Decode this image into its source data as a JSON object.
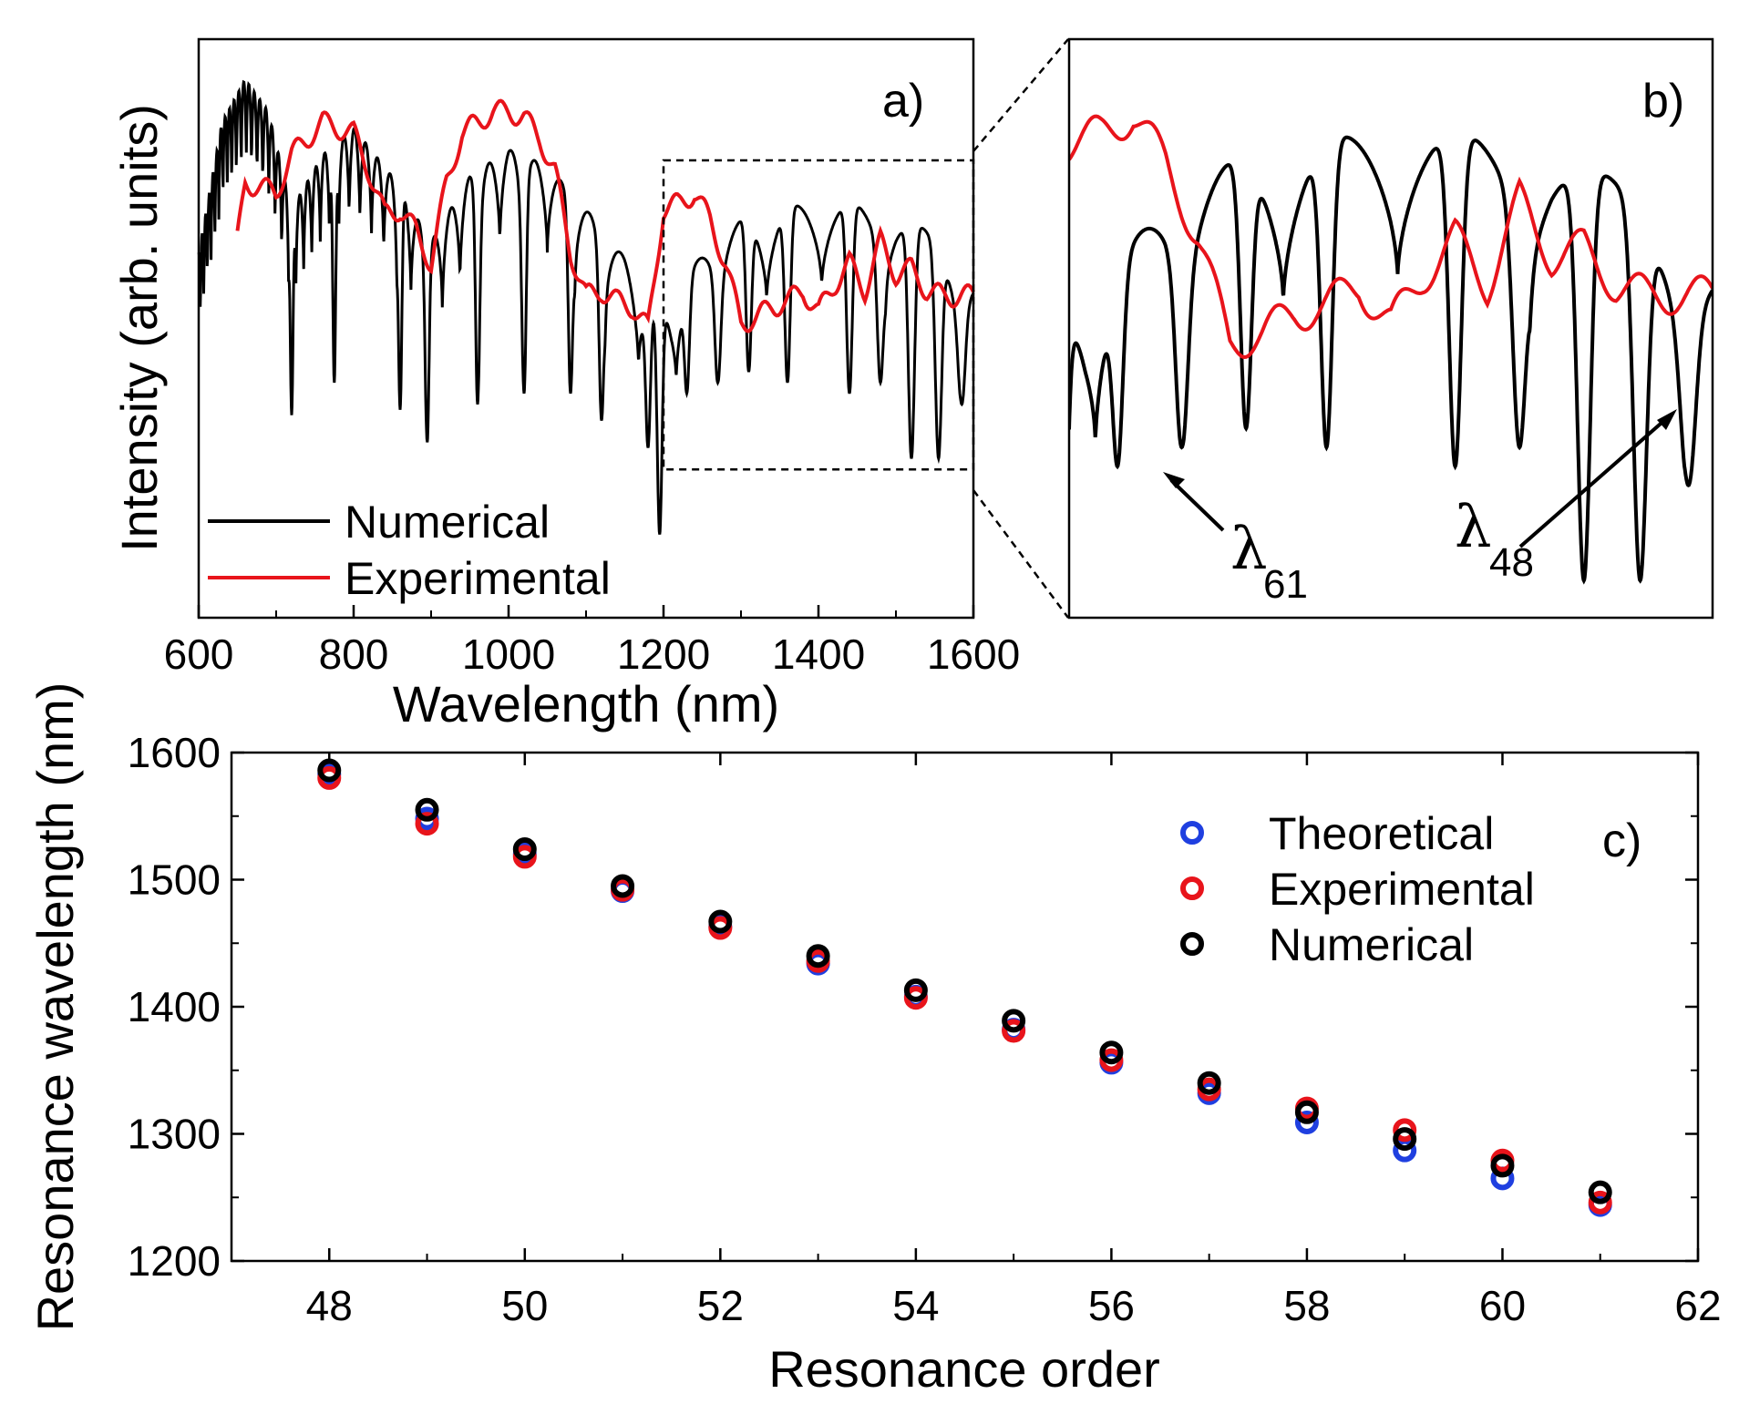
{
  "chart_data": [
    {
      "id": "a",
      "type": "line",
      "panel_label": "a)",
      "xlabel": "Wavelength (nm)",
      "ylabel": "Intensity (arb. units)",
      "xlim": [
        600,
        1600
      ],
      "ylim": [
        0,
        1
      ],
      "xticks": [
        "600",
        "800",
        "1000",
        "1200",
        "1400",
        "1600"
      ],
      "zoom_box_x": [
        1200,
        1600
      ],
      "zoom_box_y": [
        0.24,
        0.81
      ],
      "legend_position": "bottom-left",
      "series": [
        {
          "name": "Numerical",
          "color": "#000000",
          "envelope": [
            [
              600,
              0.64
            ],
            [
              630,
              0.88
            ],
            [
              660,
              0.96
            ],
            [
              690,
              0.9
            ],
            [
              720,
              0.72
            ],
            [
              760,
              0.82
            ],
            [
              800,
              0.87
            ],
            [
              850,
              0.78
            ],
            [
              900,
              0.66
            ],
            [
              950,
              0.78
            ],
            [
              1000,
              0.83
            ],
            [
              1050,
              0.8
            ],
            [
              1100,
              0.72
            ],
            [
              1150,
              0.63
            ],
            [
              1190,
              0.54
            ],
            [
              1210,
              0.55
            ],
            [
              1260,
              0.66
            ],
            [
              1300,
              0.7
            ],
            [
              1400,
              0.74
            ],
            [
              1500,
              0.72
            ],
            [
              1600,
              0.62
            ]
          ],
          "dips": [
            [
              720,
              0.34
            ],
            [
              775,
              0.4
            ],
            [
              860,
              0.35
            ],
            [
              895,
              0.29
            ],
            [
              960,
              0.36
            ],
            [
              1020,
              0.38
            ],
            [
              1080,
              0.38
            ],
            [
              1120,
              0.33
            ],
            [
              1180,
              0.28
            ],
            [
              1195,
              0.12
            ],
            [
              1230,
              0.38
            ],
            [
              1270,
              0.4
            ],
            [
              1310,
              0.42
            ],
            [
              1360,
              0.4
            ],
            [
              1440,
              0.38
            ],
            [
              1480,
              0.4
            ],
            [
              1520,
              0.26
            ],
            [
              1555,
              0.26
            ],
            [
              1585,
              0.36
            ]
          ]
        },
        {
          "name": "Experimental",
          "color": "#e8141b",
          "x": [
            650,
            660,
            680,
            700,
            720,
            740,
            760,
            780,
            800,
            820,
            840,
            860,
            880,
            900,
            920,
            940,
            960,
            980,
            1000,
            1020,
            1040,
            1060,
            1080,
            1100,
            1120,
            1140,
            1160,
            1180,
            1200,
            1220,
            1240,
            1260,
            1280,
            1300,
            1320,
            1340,
            1360,
            1380,
            1400,
            1420,
            1440,
            1460,
            1480,
            1500,
            1520,
            1540,
            1560,
            1580,
            1600
          ],
          "y": [
            0.66,
            0.77,
            0.76,
            0.75,
            0.82,
            0.85,
            0.88,
            0.87,
            0.86,
            0.79,
            0.71,
            0.72,
            0.68,
            0.62,
            0.77,
            0.86,
            0.88,
            0.9,
            0.9,
            0.89,
            0.85,
            0.79,
            0.64,
            0.56,
            0.57,
            0.55,
            0.54,
            0.5,
            0.72,
            0.73,
            0.75,
            0.7,
            0.62,
            0.51,
            0.52,
            0.54,
            0.55,
            0.57,
            0.53,
            0.58,
            0.62,
            0.57,
            0.66,
            0.6,
            0.61,
            0.57,
            0.56,
            0.56,
            0.56
          ]
        }
      ]
    },
    {
      "id": "b",
      "type": "line",
      "panel_label": "b)",
      "xlim": [
        1200,
        1600
      ],
      "ylim": [
        0.24,
        0.81
      ],
      "annotations": [
        {
          "symbol": "λ",
          "subscript": "61",
          "wavelength": 1253
        },
        {
          "symbol": "λ",
          "subscript": "48",
          "wavelength": 1585
        }
      ],
      "series": [
        {
          "name": "Numerical",
          "color": "#000000",
          "dip_count": 14
        },
        {
          "name": "Experimental",
          "color": "#e8141b"
        }
      ]
    },
    {
      "id": "c",
      "type": "scatter",
      "panel_label": "c)",
      "xlabel": "Resonance order",
      "ylabel": "Resonance wavelength (nm)",
      "xlim": [
        47,
        62
      ],
      "ylim": [
        1200,
        1600
      ],
      "xticks": [
        "48",
        "50",
        "52",
        "54",
        "56",
        "58",
        "60",
        "62"
      ],
      "yticks": [
        "1200",
        "1300",
        "1400",
        "1500",
        "1600"
      ],
      "legend_position": "top-right",
      "x": [
        48,
        49,
        50,
        51,
        52,
        53,
        54,
        55,
        56,
        57,
        58,
        59,
        60,
        61
      ],
      "series": [
        {
          "name": "Theoretical",
          "color": "#1f3fe0",
          "values": [
            1583,
            1548,
            1520,
            1491,
            1463,
            1434,
            1408,
            1382,
            1356,
            1332,
            1309,
            1287,
            1265,
            1244
          ]
        },
        {
          "name": "Experimental",
          "color": "#e8141b",
          "values": [
            1580,
            1544,
            1518,
            1492,
            1462,
            1436,
            1407,
            1381,
            1358,
            1335,
            1320,
            1303,
            1279,
            1246
          ]
        },
        {
          "name": "Numerical",
          "color": "#000000",
          "values": [
            1586,
            1555,
            1524,
            1495,
            1467,
            1440,
            1413,
            1389,
            1364,
            1340,
            1317,
            1296,
            1275,
            1254
          ]
        }
      ]
    }
  ]
}
